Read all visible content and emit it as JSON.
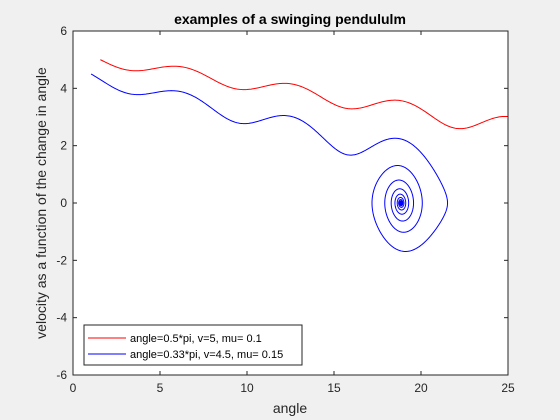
{
  "chart_data": {
    "type": "line",
    "title": "examples of a swinging pendululm",
    "xlabel": "angle",
    "ylabel": "velocity as a function of the change in angle",
    "xlim": [
      0,
      25
    ],
    "ylim": [
      -6,
      6
    ],
    "xticks": [
      "0",
      "5",
      "10",
      "15",
      "20",
      "25"
    ],
    "yticks": [
      "-6",
      "-4",
      "-2",
      "0",
      "2",
      "4",
      "6"
    ],
    "grid": false,
    "legend_position": "bottom-left",
    "series": [
      {
        "name": "angle=0.5*pi, v=5, mu= 0.1",
        "color": "#ff0000",
        "params": {
          "theta0": 1.5708,
          "v0": 5.0,
          "mu": 0.1
        }
      },
      {
        "name": "angle=0.33*pi, v=4.5, mu= 0.15",
        "color": "#0000ff",
        "params": {
          "theta0": 1.0367,
          "v0": 4.5,
          "mu": 0.15
        }
      }
    ]
  }
}
